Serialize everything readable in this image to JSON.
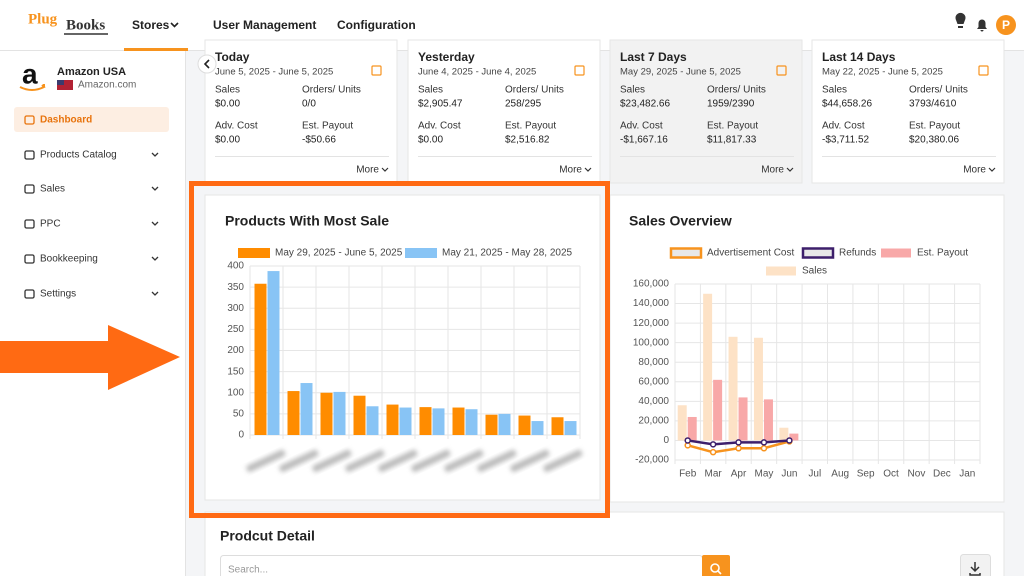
{
  "header": {
    "logo_left": "Plug",
    "logo_right": "Books",
    "nav": [
      "Stores",
      "User Management",
      "Configuration"
    ],
    "avatar": "P"
  },
  "store": {
    "name": "Amazon USA",
    "domain": "Amazon.com"
  },
  "menu": [
    "Dashboard",
    "Products Catalog",
    "Sales",
    "PPC",
    "Bookkeeping",
    "Settings"
  ],
  "cards": [
    {
      "title": "Today",
      "range": "June 5, 2025 - June 5, 2025",
      "metrics": [
        {
          "label": "Sales",
          "value": "$0.00"
        },
        {
          "label": "Orders/ Units",
          "value": "0/0"
        },
        {
          "label": "Adv. Cost",
          "value": "$0.00"
        },
        {
          "label": "Est. Payout",
          "value": "-$50.66"
        }
      ],
      "more": "More"
    },
    {
      "title": "Yesterday",
      "range": "June 4, 2025 - June 4, 2025",
      "metrics": [
        {
          "label": "Sales",
          "value": "$2,905.47"
        },
        {
          "label": "Orders/ Units",
          "value": "258/295"
        },
        {
          "label": "Adv. Cost",
          "value": "$0.00"
        },
        {
          "label": "Est. Payout",
          "value": "$2,516.82"
        }
      ],
      "more": "More"
    },
    {
      "title": "Last 7 Days",
      "range": "May 29, 2025 - June 5, 2025",
      "metrics": [
        {
          "label": "Sales",
          "value": "$23,482.66"
        },
        {
          "label": "Orders/ Units",
          "value": "1959/2390"
        },
        {
          "label": "Adv. Cost",
          "value": "-$1,667.16"
        },
        {
          "label": "Est. Payout",
          "value": "$11,817.33"
        }
      ],
      "more": "More"
    },
    {
      "title": "Last 14 Days",
      "range": "May 22, 2025 - June 5, 2025",
      "metrics": [
        {
          "label": "Sales",
          "value": "$44,658.26"
        },
        {
          "label": "Orders/ Units",
          "value": "3793/4610"
        },
        {
          "label": "Adv. Cost",
          "value": "-$3,711.52"
        },
        {
          "label": "Est. Payout",
          "value": "$20,380.06"
        }
      ],
      "more": "More"
    }
  ],
  "chart_data": [
    {
      "type": "bar",
      "title": "Products With Most Sale",
      "categories": [
        null,
        null,
        null,
        null,
        null,
        null,
        null,
        null,
        null,
        null
      ],
      "series": [
        {
          "name": "May 29, 2025 - June 5, 2025",
          "color": "#ff8c00",
          "values": [
            358,
            104,
            100,
            93,
            72,
            66,
            65,
            48,
            46,
            42
          ]
        },
        {
          "name": "May 21, 2025 - May 28, 2025",
          "color": "#88c4f5",
          "values": [
            388,
            123,
            102,
            68,
            65,
            63,
            61,
            50,
            33,
            33
          ]
        }
      ],
      "ylim": [
        0,
        400
      ],
      "yticks": [
        0,
        50,
        100,
        150,
        200,
        250,
        300,
        350,
        400
      ],
      "grid": true
    },
    {
      "type": "combo",
      "title": "Sales Overview",
      "categories": [
        "Feb",
        "Mar",
        "Apr",
        "May",
        "Jun",
        "Jul",
        "Aug",
        "Sep",
        "Oct",
        "Nov",
        "Dec",
        "Jan"
      ],
      "series": [
        {
          "name": "Advertisement Cost",
          "mark": "line",
          "color": "#f7931e",
          "values": [
            -5000,
            -12000,
            -8000,
            -8000,
            -1000,
            null,
            null,
            null,
            null,
            null,
            null,
            null
          ]
        },
        {
          "name": "Refunds",
          "mark": "line",
          "color": "#3d1f6b",
          "values": [
            0,
            -4000,
            -2000,
            -2000,
            0,
            null,
            null,
            null,
            null,
            null,
            null,
            null
          ]
        },
        {
          "name": "Sales",
          "mark": "bar",
          "color": "#fde2c6",
          "values": [
            36000,
            150000,
            106000,
            105000,
            13000,
            null,
            null,
            null,
            null,
            null,
            null,
            null
          ]
        },
        {
          "name": "Est. Payout",
          "mark": "bar",
          "color": "#f8a8a8",
          "values": [
            24000,
            62000,
            44000,
            42000,
            7000,
            null,
            null,
            null,
            null,
            null,
            null,
            null
          ]
        }
      ],
      "ylim": [
        -20000,
        160000
      ],
      "yticks": [
        {
          "value": -20000,
          "label": "-20,000"
        },
        0,
        {
          "value": 20000,
          "label": "20,000"
        },
        {
          "value": 40000,
          "label": "40,000"
        },
        {
          "value": 60000,
          "label": "60,000"
        },
        {
          "value": 80000,
          "label": "80,000"
        },
        {
          "value": 100000,
          "label": "100,000"
        },
        {
          "value": 120000,
          "label": "120,000"
        },
        {
          "value": 140000,
          "label": "140,000"
        },
        {
          "value": 160000,
          "label": "160,000"
        }
      ],
      "grid": true
    }
  ],
  "product_detail": {
    "title": "Prodcut Detail",
    "search_placeholder": "Search..."
  }
}
